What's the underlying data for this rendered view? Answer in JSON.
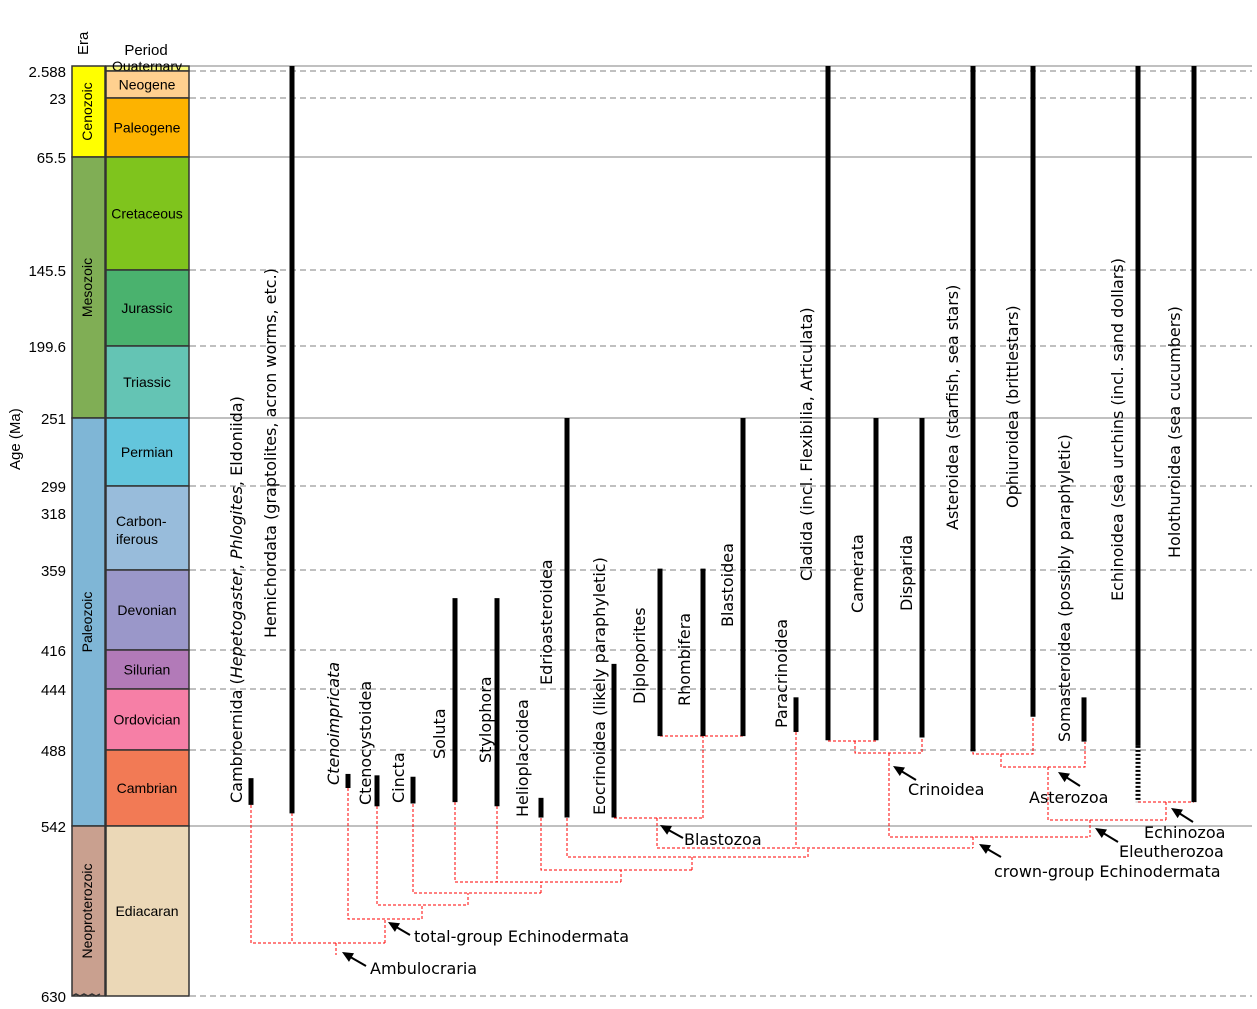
{
  "axis": {
    "ylabel": "Age (Ma)",
    "era_header": "Era",
    "period_header": "Period",
    "ticks": [
      2.588,
      23,
      65.5,
      145.5,
      199.6,
      251,
      299,
      318,
      359,
      416,
      444,
      488,
      542,
      630
    ],
    "tick_labels": [
      "2.588",
      "23",
      "65.5",
      "145.5",
      "199.6",
      "251",
      "299",
      "318",
      "359",
      "416",
      "444",
      "488",
      "542",
      "630"
    ],
    "solid_lines": [
      0,
      65.5,
      251,
      542
    ],
    "dashed_lines": [
      2.588,
      23,
      145.5,
      199.6,
      299,
      359,
      416,
      444,
      488,
      630
    ]
  },
  "eras": [
    {
      "name": "Cenozoic",
      "start": 0,
      "end": 65.5,
      "color": "#ffff00"
    },
    {
      "name": "Mesozoic",
      "start": 65.5,
      "end": 251,
      "color": "#80ae55"
    },
    {
      "name": "Paleozoic",
      "start": 251,
      "end": 542,
      "color": "#7fb6d6"
    },
    {
      "name": "Neoproterozoic",
      "start": 542,
      "end": 630,
      "color": "#c9a08f"
    }
  ],
  "periods": [
    {
      "name": "Quaternary",
      "start": 0,
      "end": 2.588,
      "color": "#f9f97f"
    },
    {
      "name": "Neogene",
      "start": 2.588,
      "end": 23,
      "color": "#ffd08f"
    },
    {
      "name": "Paleogene",
      "start": 23,
      "end": 65.5,
      "color": "#fdb300"
    },
    {
      "name": "Cretaceous",
      "start": 65.5,
      "end": 145.5,
      "color": "#7fc41d"
    },
    {
      "name": "Jurassic",
      "start": 145.5,
      "end": 199.6,
      "color": "#4ab26e"
    },
    {
      "name": "Triassic",
      "start": 199.6,
      "end": 251,
      "color": "#64c4b4"
    },
    {
      "name": "Permian",
      "start": 251,
      "end": 299,
      "color": "#63c5dc"
    },
    {
      "name": "Carbon-",
      "name2": "iferous",
      "start": 299,
      "end": 359,
      "color": "#98bcdb"
    },
    {
      "name": "Devonian",
      "start": 359,
      "end": 416,
      "color": "#9a97c9"
    },
    {
      "name": "Silurian",
      "start": 416,
      "end": 444,
      "color": "#b27ab8"
    },
    {
      "name": "Ordovician",
      "start": 444,
      "end": 488,
      "color": "#f67fa6"
    },
    {
      "name": "Cambrian",
      "start": 488,
      "end": 542,
      "color": "#f27a55"
    },
    {
      "name": "Ediacaran",
      "start": 542,
      "end": 630,
      "color": "#ebd8b7"
    }
  ],
  "taxa": [
    {
      "label": [
        {
          "t": "Cambroernida ("
        },
        {
          "t": "Hepetogaster",
          "i": true
        },
        {
          "t": ", "
        },
        {
          "t": "Phlogites",
          "i": true
        },
        {
          "t": ", Eldoniida)"
        }
      ],
      "range": [
        508,
        527
      ]
    },
    {
      "label": [
        {
          "t": "Hemichordata (graptolites, acron worms, etc.)"
        }
      ],
      "range": [
        0,
        533
      ]
    },
    {
      "label": [
        {
          "t": "Ctenoimpricata",
          "i": true
        }
      ],
      "range": [
        505,
        515
      ]
    },
    {
      "label": [
        {
          "t": "Ctenocystoidea"
        }
      ],
      "range": [
        506,
        528
      ]
    },
    {
      "label": [
        {
          "t": "Cincta"
        }
      ],
      "range": [
        507,
        526
      ]
    },
    {
      "label": [
        {
          "t": "Soluta"
        }
      ],
      "range": [
        379,
        525
      ]
    },
    {
      "label": [
        {
          "t": "Stylophora"
        }
      ],
      "range": [
        379,
        528
      ]
    },
    {
      "label": [
        {
          "t": "Helioplacoidea"
        }
      ],
      "range": [
        522,
        536
      ]
    },
    {
      "label": [
        {
          "t": "Edrioasteroidea"
        }
      ],
      "range": [
        251,
        536
      ]
    },
    {
      "label": [
        {
          "t": "Eocrinoidea (likely paraphyletic)"
        }
      ],
      "range": [
        426,
        536
      ]
    },
    {
      "label": [
        {
          "t": "Diploporites"
        }
      ],
      "range": [
        358,
        478
      ]
    },
    {
      "label": [
        {
          "t": "Rhombifera"
        }
      ],
      "range": [
        358,
        478
      ]
    },
    {
      "label": [
        {
          "t": "Blastoidea"
        }
      ],
      "range": [
        251,
        478
      ]
    },
    {
      "label": [
        {
          "t": "Paracrinoidea"
        }
      ],
      "range": [
        450,
        475
      ]
    },
    {
      "label": [
        {
          "t": "Cladida (incl. Flexibilia,  Articulata)"
        }
      ],
      "range": [
        0,
        481
      ]
    },
    {
      "label": [
        {
          "t": "Camerata"
        }
      ],
      "range": [
        251,
        481
      ]
    },
    {
      "label": [
        {
          "t": "Disparida"
        }
      ],
      "range": [
        251,
        479
      ]
    },
    {
      "label": [
        {
          "t": "Asteroidea (starfish, sea stars)"
        }
      ],
      "range": [
        0,
        489
      ]
    },
    {
      "label": [
        {
          "t": "Ophiuroidea (brittlestars)"
        }
      ],
      "range": [
        0,
        464
      ]
    },
    {
      "label": [
        {
          "t": "Somasteroidea (possibly paraphyletic)"
        }
      ],
      "range": [
        450,
        482
      ]
    },
    {
      "label": [
        {
          "t": "Echinoidea (sea urchins (incl. sand dollars)"
        }
      ],
      "range": [
        0,
        485
      ],
      "uncertain_range": [
        485,
        525
      ]
    },
    {
      "label": [
        {
          "t": "Holothuroidea (sea cucumbers)"
        }
      ],
      "range": [
        0,
        525
      ]
    }
  ],
  "clades": [
    "Ambulocraria",
    "total-group Echinodermata",
    "Blastozoa",
    "Crinoidea",
    "Asterozoa",
    "Echinozoa",
    "Eleutherozoa",
    "crown-group Echinodermata"
  ],
  "colors": {
    "range_bar": "#000000",
    "tree": "#ff0000",
    "grid": "#808080"
  }
}
